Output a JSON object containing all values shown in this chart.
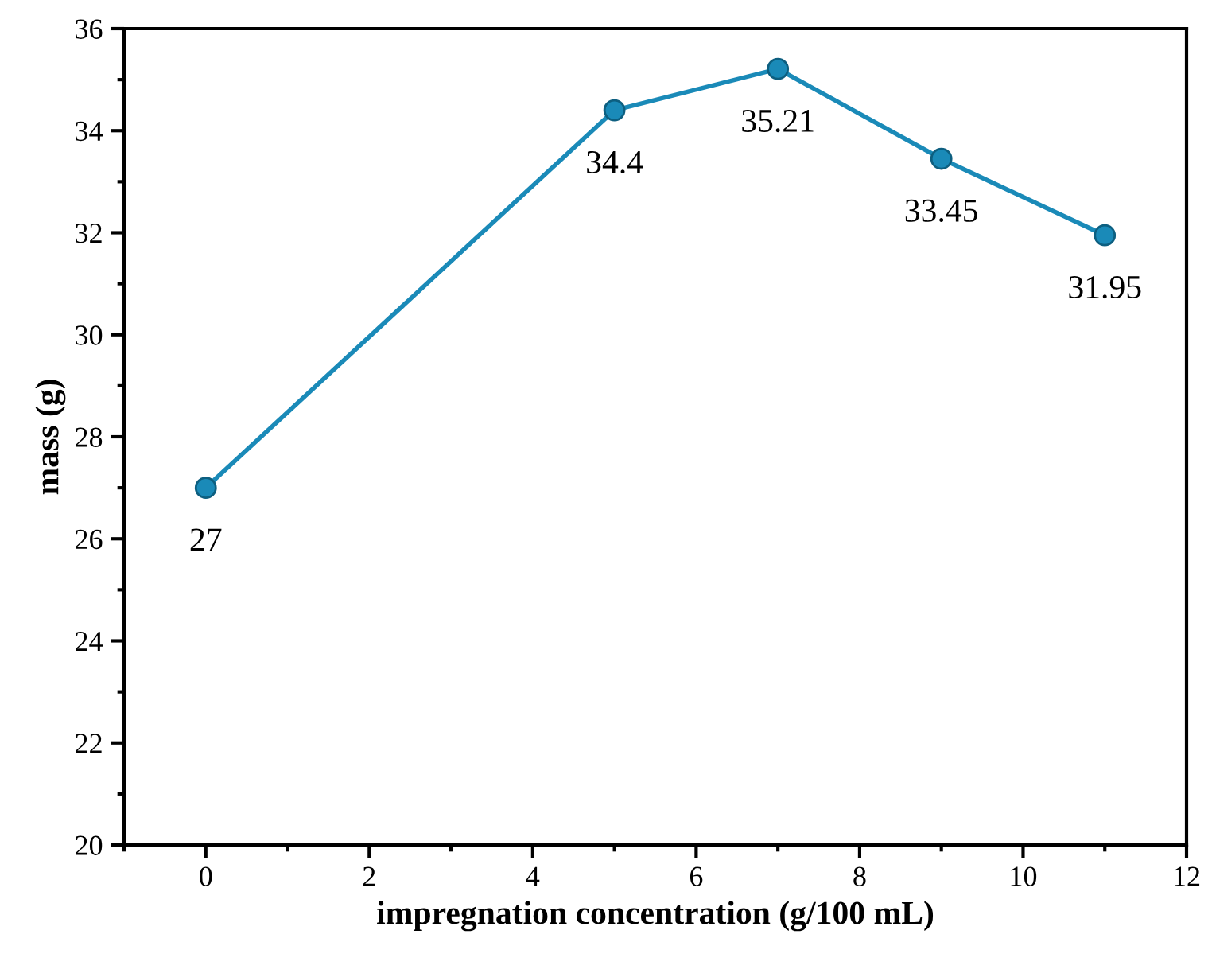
{
  "chart_data": {
    "type": "line",
    "xlabel": "impregnation concentration (g/100 mL)",
    "ylabel": "mass (g)",
    "x": [
      0,
      5,
      7,
      9,
      11
    ],
    "series": [
      {
        "color": "#1a8ab8",
        "values": [
          27,
          34.4,
          35.21,
          33.45,
          31.95
        ]
      }
    ],
    "xlim": [
      -1,
      12
    ],
    "xticks": [
      0,
      2,
      4,
      6,
      8,
      10,
      12
    ],
    "ylim": [
      20,
      36
    ],
    "yticks": [
      20,
      22,
      24,
      26,
      28,
      30,
      32,
      34,
      36
    ],
    "marker": "circle",
    "line_style": "solid",
    "data_labels": true,
    "grid": false,
    "legend": false
  }
}
